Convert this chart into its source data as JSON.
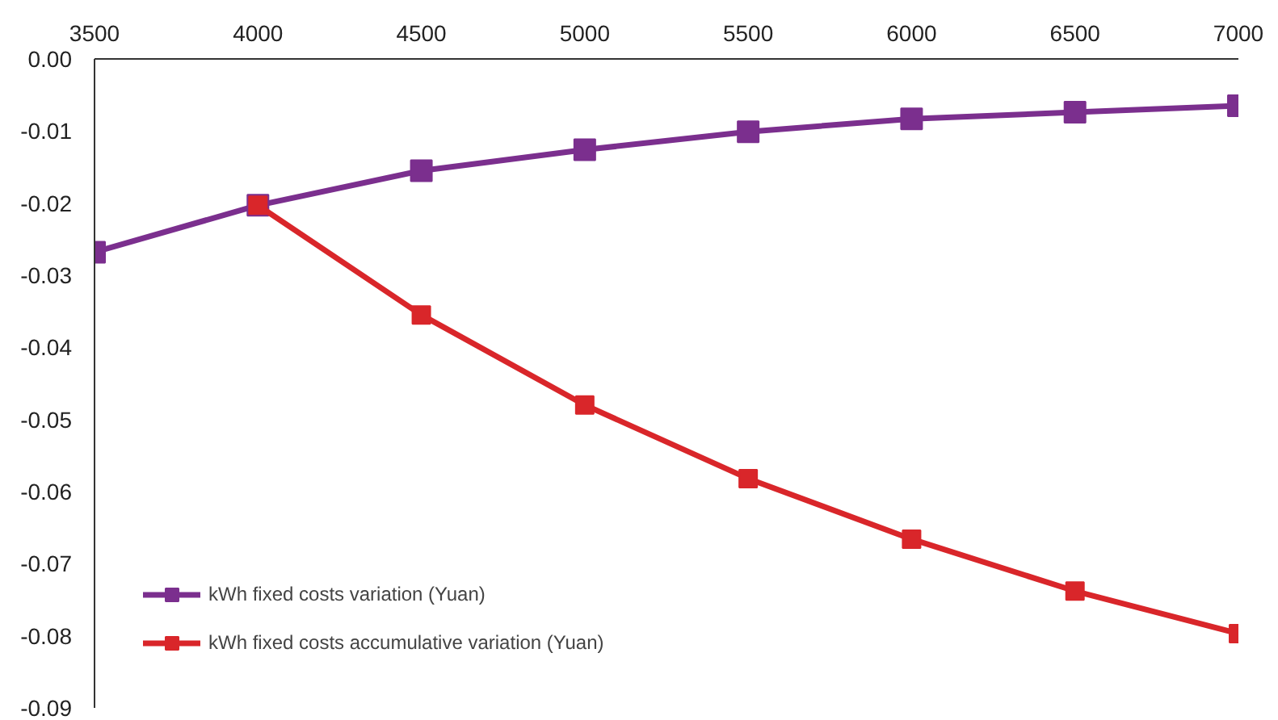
{
  "chart_data": {
    "type": "line",
    "x": [
      4000,
      4500,
      5000,
      5500,
      6000,
      6500,
      7000
    ],
    "series": [
      {
        "name": "kWh fixed costs variation (Yuan)",
        "color": "#7b2f8e",
        "x": [
          3500,
          4000,
          4500,
          5000,
          5500,
          6000,
          6500,
          7000
        ],
        "values": [
          -0.0268,
          -0.0203,
          -0.0155,
          -0.0126,
          -0.0101,
          -0.0083,
          -0.0074,
          -0.0065
        ]
      },
      {
        "name": "kWh fixed costs accumulative variation (Yuan)",
        "color": "#d9262a",
        "values": [
          -0.0203,
          -0.0355,
          -0.048,
          -0.0582,
          -0.0666,
          -0.0738,
          -0.0797
        ]
      }
    ],
    "xlim": [
      3500,
      7000
    ],
    "xticks": [
      3500,
      4000,
      4500,
      5000,
      5500,
      6000,
      6500,
      7000
    ],
    "ylim": [
      -0.09,
      0
    ],
    "yticks": [
      {
        "value": 0,
        "label": "0.00"
      },
      {
        "value": -0.01,
        "label": "-0.01"
      },
      {
        "value": -0.02,
        "label": "-0.02"
      },
      {
        "value": -0.03,
        "label": "-0.03"
      },
      {
        "value": -0.04,
        "label": "-0.04"
      },
      {
        "value": -0.05,
        "label": "-0.05"
      },
      {
        "value": -0.06,
        "label": "-0.06"
      },
      {
        "value": -0.07,
        "label": "-0.07"
      },
      {
        "value": -0.08,
        "label": "-0.08"
      },
      {
        "value": -0.09,
        "label": "-0.09"
      }
    ],
    "marker": "square",
    "line_style": "solid",
    "grid": false,
    "legend": "bottom left"
  }
}
